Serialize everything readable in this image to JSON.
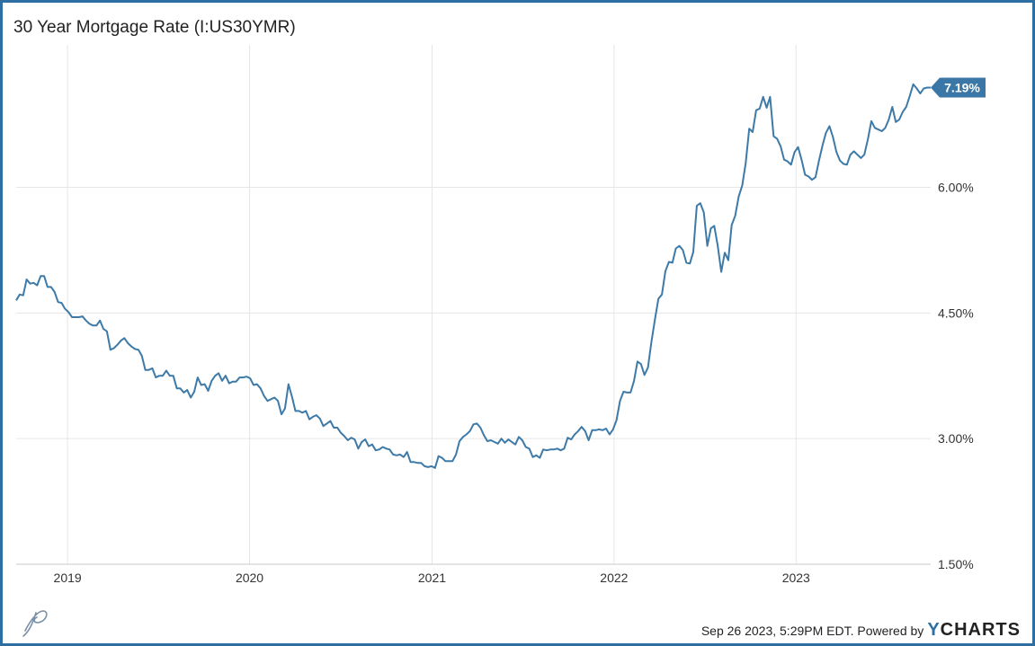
{
  "header": {
    "title": "30 Year Mortgage Rate (I:US30YMR)"
  },
  "footer": {
    "timestamp_text": "Sep 26 2023, 5:29PM EDT.  Powered by",
    "brand_y": "Y",
    "brand_rest": "CHARTS"
  },
  "colors": {
    "line": "#3d7aa8",
    "badge": "#3b77a6",
    "border": "#2e6fa3",
    "grid": "#e6e6e6"
  },
  "icons": {
    "logo": "script-p-logo-icon"
  },
  "chart_data": {
    "type": "line",
    "title": "30 Year Mortgage Rate (I:US30YMR)",
    "xlabel": "",
    "ylabel": "",
    "ylim": [
      1.5,
      7.7
    ],
    "xlim": [
      "2018-09-20",
      "2023-09-28"
    ],
    "grid": true,
    "y_ticks": [
      {
        "value": 1.5,
        "label": "1.50%"
      },
      {
        "value": 3.0,
        "label": "3.00%"
      },
      {
        "value": 4.5,
        "label": "4.50%"
      },
      {
        "value": 6.0,
        "label": "6.00%"
      }
    ],
    "x_ticks": [
      {
        "date": "2019-01-01",
        "label": "2019"
      },
      {
        "date": "2020-01-01",
        "label": "2020"
      },
      {
        "date": "2021-01-01",
        "label": "2021"
      },
      {
        "date": "2022-01-01",
        "label": "2022"
      },
      {
        "date": "2023-01-01",
        "label": "2023"
      }
    ],
    "last_value_label": "7.19%",
    "series": [
      {
        "points": [
          [
            "2018-09-20",
            4.65
          ],
          [
            "2018-09-27",
            4.72
          ],
          [
            "2018-10-04",
            4.71
          ],
          [
            "2018-10-11",
            4.9
          ],
          [
            "2018-10-18",
            4.85
          ],
          [
            "2018-10-25",
            4.86
          ],
          [
            "2018-11-01",
            4.83
          ],
          [
            "2018-11-08",
            4.94
          ],
          [
            "2018-11-15",
            4.94
          ],
          [
            "2018-11-22",
            4.81
          ],
          [
            "2018-11-29",
            4.81
          ],
          [
            "2018-12-06",
            4.75
          ],
          [
            "2018-12-13",
            4.63
          ],
          [
            "2018-12-20",
            4.62
          ],
          [
            "2018-12-27",
            4.55
          ],
          [
            "2019-01-03",
            4.51
          ],
          [
            "2019-01-10",
            4.45
          ],
          [
            "2019-01-17",
            4.45
          ],
          [
            "2019-01-24",
            4.45
          ],
          [
            "2019-01-31",
            4.46
          ],
          [
            "2019-02-07",
            4.41
          ],
          [
            "2019-02-14",
            4.37
          ],
          [
            "2019-02-21",
            4.35
          ],
          [
            "2019-02-28",
            4.35
          ],
          [
            "2019-03-07",
            4.41
          ],
          [
            "2019-03-14",
            4.31
          ],
          [
            "2019-03-21",
            4.28
          ],
          [
            "2019-03-28",
            4.06
          ],
          [
            "2019-04-04",
            4.08
          ],
          [
            "2019-04-11",
            4.12
          ],
          [
            "2019-04-18",
            4.17
          ],
          [
            "2019-04-25",
            4.2
          ],
          [
            "2019-05-02",
            4.14
          ],
          [
            "2019-05-09",
            4.1
          ],
          [
            "2019-05-16",
            4.07
          ],
          [
            "2019-05-23",
            4.06
          ],
          [
            "2019-05-30",
            3.99
          ],
          [
            "2019-06-06",
            3.82
          ],
          [
            "2019-06-13",
            3.82
          ],
          [
            "2019-06-20",
            3.84
          ],
          [
            "2019-06-27",
            3.73
          ],
          [
            "2019-07-04",
            3.75
          ],
          [
            "2019-07-11",
            3.75
          ],
          [
            "2019-07-18",
            3.81
          ],
          [
            "2019-07-25",
            3.75
          ],
          [
            "2019-08-01",
            3.75
          ],
          [
            "2019-08-08",
            3.6
          ],
          [
            "2019-08-15",
            3.6
          ],
          [
            "2019-08-22",
            3.55
          ],
          [
            "2019-08-29",
            3.58
          ],
          [
            "2019-09-05",
            3.49
          ],
          [
            "2019-09-12",
            3.56
          ],
          [
            "2019-09-19",
            3.73
          ],
          [
            "2019-09-26",
            3.64
          ],
          [
            "2019-10-03",
            3.65
          ],
          [
            "2019-10-10",
            3.57
          ],
          [
            "2019-10-17",
            3.69
          ],
          [
            "2019-10-24",
            3.75
          ],
          [
            "2019-10-31",
            3.78
          ],
          [
            "2019-11-07",
            3.69
          ],
          [
            "2019-11-14",
            3.75
          ],
          [
            "2019-11-21",
            3.66
          ],
          [
            "2019-11-28",
            3.68
          ],
          [
            "2019-12-05",
            3.68
          ],
          [
            "2019-12-12",
            3.73
          ],
          [
            "2019-12-19",
            3.73
          ],
          [
            "2019-12-26",
            3.74
          ],
          [
            "2020-01-02",
            3.72
          ],
          [
            "2020-01-09",
            3.64
          ],
          [
            "2020-01-16",
            3.65
          ],
          [
            "2020-01-23",
            3.6
          ],
          [
            "2020-01-30",
            3.51
          ],
          [
            "2020-02-06",
            3.45
          ],
          [
            "2020-02-13",
            3.47
          ],
          [
            "2020-02-20",
            3.49
          ],
          [
            "2020-02-27",
            3.45
          ],
          [
            "2020-03-05",
            3.29
          ],
          [
            "2020-03-12",
            3.36
          ],
          [
            "2020-03-19",
            3.65
          ],
          [
            "2020-03-26",
            3.5
          ],
          [
            "2020-04-02",
            3.33
          ],
          [
            "2020-04-09",
            3.33
          ],
          [
            "2020-04-16",
            3.31
          ],
          [
            "2020-04-23",
            3.33
          ],
          [
            "2020-04-30",
            3.23
          ],
          [
            "2020-05-07",
            3.26
          ],
          [
            "2020-05-14",
            3.28
          ],
          [
            "2020-05-21",
            3.24
          ],
          [
            "2020-05-28",
            3.15
          ],
          [
            "2020-06-04",
            3.18
          ],
          [
            "2020-06-11",
            3.21
          ],
          [
            "2020-06-18",
            3.13
          ],
          [
            "2020-06-25",
            3.13
          ],
          [
            "2020-07-02",
            3.07
          ],
          [
            "2020-07-09",
            3.03
          ],
          [
            "2020-07-16",
            2.98
          ],
          [
            "2020-07-23",
            3.01
          ],
          [
            "2020-07-30",
            2.99
          ],
          [
            "2020-08-06",
            2.88
          ],
          [
            "2020-08-13",
            2.96
          ],
          [
            "2020-08-20",
            2.99
          ],
          [
            "2020-08-27",
            2.91
          ],
          [
            "2020-09-03",
            2.93
          ],
          [
            "2020-09-10",
            2.86
          ],
          [
            "2020-09-17",
            2.87
          ],
          [
            "2020-09-24",
            2.9
          ],
          [
            "2020-10-01",
            2.88
          ],
          [
            "2020-10-08",
            2.87
          ],
          [
            "2020-10-15",
            2.81
          ],
          [
            "2020-10-22",
            2.8
          ],
          [
            "2020-10-29",
            2.81
          ],
          [
            "2020-11-05",
            2.78
          ],
          [
            "2020-11-12",
            2.84
          ],
          [
            "2020-11-19",
            2.72
          ],
          [
            "2020-11-26",
            2.72
          ],
          [
            "2020-12-03",
            2.71
          ],
          [
            "2020-12-10",
            2.71
          ],
          [
            "2020-12-17",
            2.67
          ],
          [
            "2020-12-24",
            2.66
          ],
          [
            "2020-12-31",
            2.67
          ],
          [
            "2021-01-07",
            2.65
          ],
          [
            "2021-01-14",
            2.79
          ],
          [
            "2021-01-21",
            2.77
          ],
          [
            "2021-01-28",
            2.73
          ],
          [
            "2021-02-04",
            2.73
          ],
          [
            "2021-02-11",
            2.73
          ],
          [
            "2021-02-18",
            2.81
          ],
          [
            "2021-02-25",
            2.97
          ],
          [
            "2021-03-04",
            3.02
          ],
          [
            "2021-03-11",
            3.05
          ],
          [
            "2021-03-18",
            3.09
          ],
          [
            "2021-03-25",
            3.17
          ],
          [
            "2021-04-01",
            3.18
          ],
          [
            "2021-04-08",
            3.13
          ],
          [
            "2021-04-15",
            3.04
          ],
          [
            "2021-04-22",
            2.97
          ],
          [
            "2021-04-29",
            2.98
          ],
          [
            "2021-05-06",
            2.96
          ],
          [
            "2021-05-13",
            2.94
          ],
          [
            "2021-05-20",
            3.0
          ],
          [
            "2021-05-27",
            2.95
          ],
          [
            "2021-06-03",
            2.99
          ],
          [
            "2021-06-10",
            2.96
          ],
          [
            "2021-06-17",
            2.93
          ],
          [
            "2021-06-24",
            3.02
          ],
          [
            "2021-07-01",
            2.98
          ],
          [
            "2021-07-08",
            2.9
          ],
          [
            "2021-07-15",
            2.88
          ],
          [
            "2021-07-22",
            2.78
          ],
          [
            "2021-07-29",
            2.8
          ],
          [
            "2021-08-05",
            2.77
          ],
          [
            "2021-08-12",
            2.87
          ],
          [
            "2021-08-19",
            2.86
          ],
          [
            "2021-08-26",
            2.87
          ],
          [
            "2021-09-02",
            2.87
          ],
          [
            "2021-09-09",
            2.88
          ],
          [
            "2021-09-16",
            2.86
          ],
          [
            "2021-09-23",
            2.88
          ],
          [
            "2021-09-30",
            3.01
          ],
          [
            "2021-10-07",
            2.99
          ],
          [
            "2021-10-14",
            3.05
          ],
          [
            "2021-10-21",
            3.09
          ],
          [
            "2021-10-28",
            3.14
          ],
          [
            "2021-11-04",
            3.09
          ],
          [
            "2021-11-11",
            2.98
          ],
          [
            "2021-11-18",
            3.1
          ],
          [
            "2021-11-25",
            3.1
          ],
          [
            "2021-12-02",
            3.11
          ],
          [
            "2021-12-09",
            3.1
          ],
          [
            "2021-12-16",
            3.12
          ],
          [
            "2021-12-23",
            3.05
          ],
          [
            "2021-12-30",
            3.11
          ],
          [
            "2022-01-06",
            3.22
          ],
          [
            "2022-01-13",
            3.45
          ],
          [
            "2022-01-20",
            3.56
          ],
          [
            "2022-01-27",
            3.55
          ],
          [
            "2022-02-03",
            3.55
          ],
          [
            "2022-02-10",
            3.69
          ],
          [
            "2022-02-17",
            3.92
          ],
          [
            "2022-02-24",
            3.89
          ],
          [
            "2022-03-03",
            3.76
          ],
          [
            "2022-03-10",
            3.85
          ],
          [
            "2022-03-17",
            4.16
          ],
          [
            "2022-03-24",
            4.42
          ],
          [
            "2022-03-31",
            4.67
          ],
          [
            "2022-04-07",
            4.72
          ],
          [
            "2022-04-14",
            5.0
          ],
          [
            "2022-04-21",
            5.11
          ],
          [
            "2022-04-28",
            5.1
          ],
          [
            "2022-05-05",
            5.27
          ],
          [
            "2022-05-12",
            5.3
          ],
          [
            "2022-05-19",
            5.25
          ],
          [
            "2022-05-26",
            5.1
          ],
          [
            "2022-06-02",
            5.09
          ],
          [
            "2022-06-09",
            5.23
          ],
          [
            "2022-06-16",
            5.78
          ],
          [
            "2022-06-23",
            5.81
          ],
          [
            "2022-06-30",
            5.7
          ],
          [
            "2022-07-07",
            5.3
          ],
          [
            "2022-07-14",
            5.51
          ],
          [
            "2022-07-21",
            5.54
          ],
          [
            "2022-07-28",
            5.3
          ],
          [
            "2022-08-04",
            4.99
          ],
          [
            "2022-08-11",
            5.22
          ],
          [
            "2022-08-18",
            5.13
          ],
          [
            "2022-08-25",
            5.55
          ],
          [
            "2022-09-01",
            5.66
          ],
          [
            "2022-09-08",
            5.89
          ],
          [
            "2022-09-15",
            6.02
          ],
          [
            "2022-09-22",
            6.29
          ],
          [
            "2022-09-29",
            6.7
          ],
          [
            "2022-10-06",
            6.66
          ],
          [
            "2022-10-13",
            6.92
          ],
          [
            "2022-10-20",
            6.94
          ],
          [
            "2022-10-27",
            7.08
          ],
          [
            "2022-11-03",
            6.95
          ],
          [
            "2022-11-10",
            7.08
          ],
          [
            "2022-11-17",
            6.61
          ],
          [
            "2022-11-24",
            6.58
          ],
          [
            "2022-12-01",
            6.49
          ],
          [
            "2022-12-08",
            6.33
          ],
          [
            "2022-12-15",
            6.31
          ],
          [
            "2022-12-22",
            6.27
          ],
          [
            "2022-12-29",
            6.42
          ],
          [
            "2023-01-05",
            6.48
          ],
          [
            "2023-01-12",
            6.33
          ],
          [
            "2023-01-19",
            6.15
          ],
          [
            "2023-01-26",
            6.13
          ],
          [
            "2023-02-02",
            6.09
          ],
          [
            "2023-02-09",
            6.12
          ],
          [
            "2023-02-16",
            6.32
          ],
          [
            "2023-02-23",
            6.5
          ],
          [
            "2023-03-02",
            6.65
          ],
          [
            "2023-03-09",
            6.73
          ],
          [
            "2023-03-16",
            6.6
          ],
          [
            "2023-03-23",
            6.42
          ],
          [
            "2023-03-30",
            6.32
          ],
          [
            "2023-04-06",
            6.28
          ],
          [
            "2023-04-13",
            6.27
          ],
          [
            "2023-04-20",
            6.39
          ],
          [
            "2023-04-27",
            6.43
          ],
          [
            "2023-05-04",
            6.39
          ],
          [
            "2023-05-11",
            6.35
          ],
          [
            "2023-05-18",
            6.39
          ],
          [
            "2023-05-25",
            6.57
          ],
          [
            "2023-06-01",
            6.79
          ],
          [
            "2023-06-08",
            6.71
          ],
          [
            "2023-06-15",
            6.69
          ],
          [
            "2023-06-22",
            6.67
          ],
          [
            "2023-06-29",
            6.71
          ],
          [
            "2023-07-06",
            6.81
          ],
          [
            "2023-07-13",
            6.96
          ],
          [
            "2023-07-20",
            6.78
          ],
          [
            "2023-07-27",
            6.81
          ],
          [
            "2023-08-03",
            6.9
          ],
          [
            "2023-08-10",
            6.96
          ],
          [
            "2023-08-17",
            7.09
          ],
          [
            "2023-08-24",
            7.23
          ],
          [
            "2023-08-31",
            7.18
          ],
          [
            "2023-09-07",
            7.12
          ],
          [
            "2023-09-14",
            7.18
          ],
          [
            "2023-09-21",
            7.19
          ],
          [
            "2023-09-28",
            7.19
          ]
        ]
      }
    ]
  }
}
